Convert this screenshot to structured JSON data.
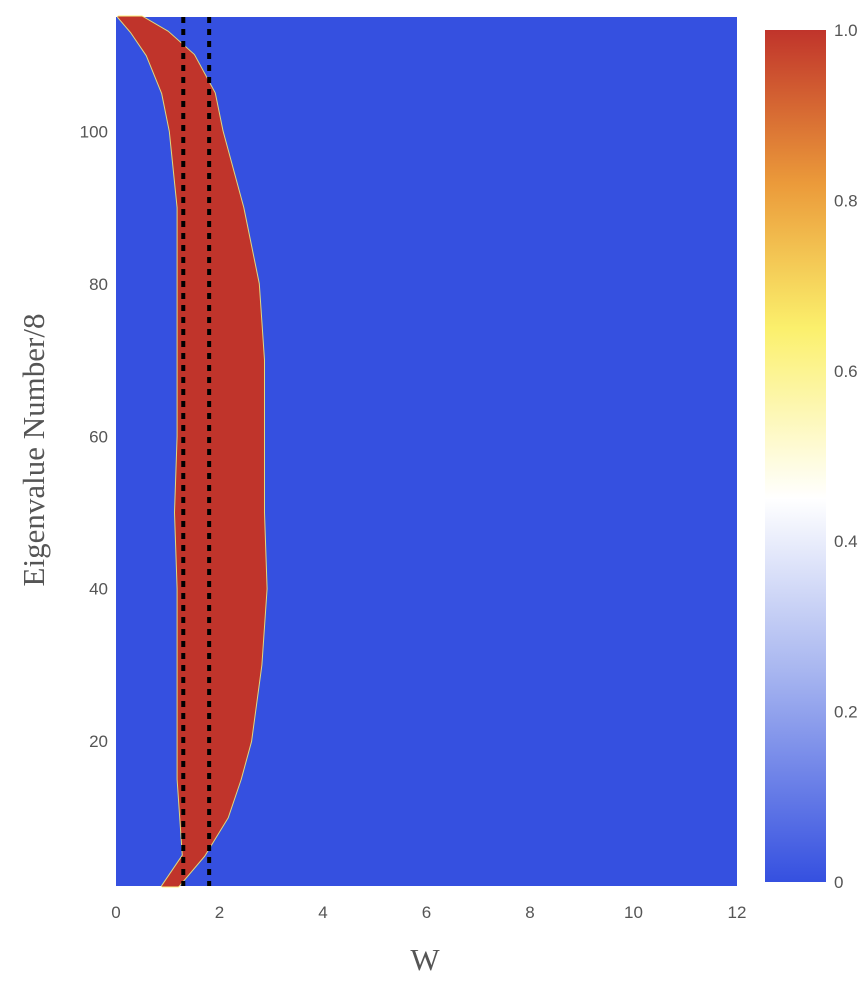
{
  "chart_data": {
    "type": "heatmap",
    "xlabel": "W",
    "ylabel": "Eigenvalue Number/8",
    "xlim": [
      0,
      12
    ],
    "ylim": [
      1,
      115
    ],
    "x_ticks": [
      0,
      2,
      4,
      6,
      8,
      10,
      12
    ],
    "y_ticks": [
      20,
      40,
      60,
      80,
      100
    ],
    "colorbar": {
      "range": [
        0,
        1
      ],
      "ticks": [
        "1.0",
        "0.8",
        "0.6",
        "0.4",
        "0.2",
        "0"
      ],
      "stops": [
        {
          "value": 0.0,
          "color": "#3550e0"
        },
        {
          "value": 0.25,
          "color": "#a9b7f0"
        },
        {
          "value": 0.45,
          "color": "#ffffff"
        },
        {
          "value": 0.65,
          "color": "#fbf06c"
        },
        {
          "value": 0.82,
          "color": "#eb9a3a"
        },
        {
          "value": 1.0,
          "color": "#c0342b"
        }
      ]
    },
    "background_value": 0,
    "region_value": 1,
    "region_boundary": {
      "eigenvalue": [
        1,
        5,
        10,
        15,
        20,
        30,
        40,
        50,
        60,
        70,
        80,
        90,
        100,
        105,
        110,
        113,
        115
      ],
      "w_left": [
        0.9,
        1.3,
        1.25,
        1.2,
        1.2,
        1.2,
        1.2,
        1.15,
        1.2,
        1.2,
        1.2,
        1.2,
        1.05,
        0.9,
        0.6,
        0.3,
        0.05
      ],
      "w_right": [
        1.2,
        1.7,
        2.15,
        2.4,
        2.6,
        2.8,
        2.9,
        2.85,
        2.85,
        2.85,
        2.75,
        2.45,
        2.05,
        1.9,
        1.5,
        1.0,
        0.5
      ]
    },
    "reference_lines": [
      {
        "x": 1.3,
        "style": "dotted",
        "color": "#000000"
      },
      {
        "x": 1.8,
        "style": "dotted",
        "color": "#000000"
      }
    ]
  }
}
